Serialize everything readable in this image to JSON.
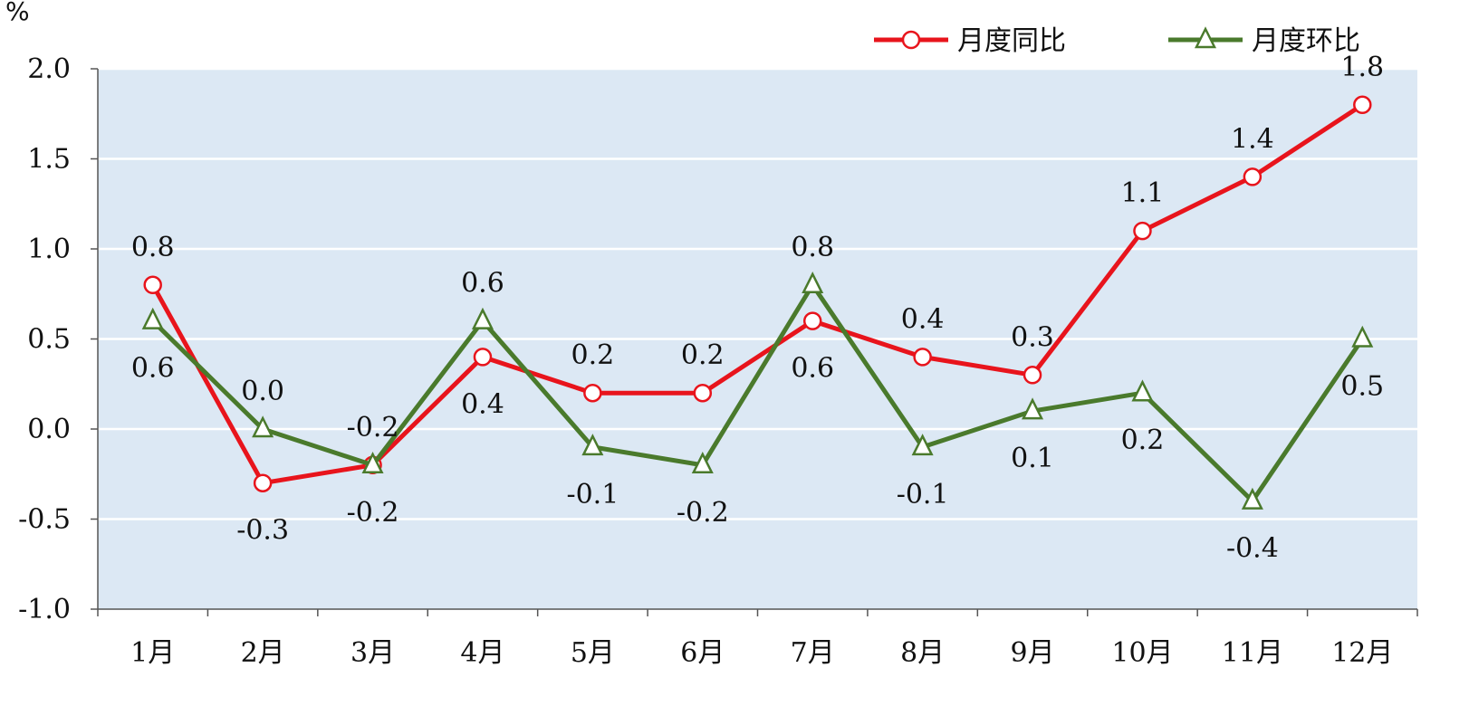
{
  "chart_data": {
    "type": "line",
    "title": "",
    "ylabel": "%",
    "xlabel": "",
    "categories": [
      "1月",
      "2月",
      "3月",
      "4月",
      "5月",
      "6月",
      "7月",
      "8月",
      "9月",
      "10月",
      "11月",
      "12月"
    ],
    "ylim": [
      -1.0,
      2.0
    ],
    "yticks": [
      "2.0",
      "1.5",
      "1.0",
      "0.5",
      "0.0",
      "-0.5",
      "-1.0"
    ],
    "grid": true,
    "legend_position": "top-right",
    "series": [
      {
        "name": "月度同比",
        "color": "#e8141c",
        "marker": "circle",
        "values": [
          0.8,
          -0.3,
          -0.2,
          0.4,
          0.2,
          0.2,
          0.6,
          0.4,
          0.3,
          1.1,
          1.4,
          1.8
        ],
        "labels": [
          "0.8",
          "-0.3",
          "-0.2",
          "0.4",
          "0.2",
          "0.2",
          "0.6",
          "0.4",
          "0.3",
          "1.1",
          "1.4",
          "1.8"
        ]
      },
      {
        "name": "月度环比",
        "color": "#4a7a2c",
        "marker": "triangle",
        "values": [
          0.6,
          0.0,
          -0.2,
          0.6,
          -0.1,
          -0.2,
          0.8,
          -0.1,
          0.1,
          0.2,
          -0.4,
          0.5
        ],
        "labels": [
          "0.6",
          "0.0",
          "-0.2",
          "0.6",
          "-0.1",
          "-0.2",
          "0.8",
          "-0.1",
          "0.1",
          "0.2",
          "-0.4",
          "0.5"
        ]
      }
    ],
    "colors": {
      "plot_background": "#dce8f4",
      "gridline": "#ffffff",
      "axis": "#555555"
    }
  }
}
